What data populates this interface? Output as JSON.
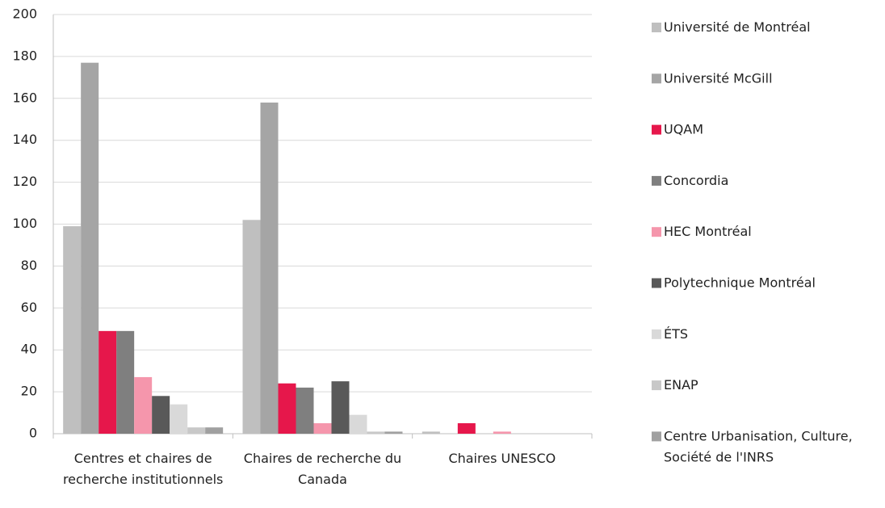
{
  "chart_data": {
    "type": "bar",
    "categories": [
      "Centres et chaires de recherche institutionnels",
      "Chaires de recherche du Canada",
      "Chaires UNESCO"
    ],
    "series": [
      {
        "name": "Université de Montréal",
        "color": "#bfbfbf",
        "values": [
          99,
          102,
          1
        ]
      },
      {
        "name": "Université McGill",
        "color": "#a5a5a5",
        "values": [
          177,
          158,
          0
        ]
      },
      {
        "name": "UQAM",
        "color": "#e6174b",
        "values": [
          49,
          24,
          5
        ]
      },
      {
        "name": "Concordia",
        "color": "#7f7f7f",
        "values": [
          49,
          22,
          0
        ]
      },
      {
        "name": "HEC Montréal",
        "color": "#f596ac",
        "values": [
          27,
          5,
          1
        ]
      },
      {
        "name": "Polytechnique Montréal",
        "color": "#595959",
        "values": [
          18,
          25,
          0
        ]
      },
      {
        "name": "ÉTS",
        "color": "#d9d9d9",
        "values": [
          14,
          9,
          0
        ]
      },
      {
        "name": "ENAP",
        "color": "#c8c8c8",
        "values": [
          3,
          1,
          0
        ]
      },
      {
        "name": "Centre Urbanisation, Culture, Société de l'INRS",
        "color": "#a0a0a0",
        "values": [
          3,
          1,
          0
        ]
      }
    ],
    "ylim": [
      0,
      200
    ],
    "yticks": [
      0,
      20,
      40,
      60,
      80,
      100,
      120,
      140,
      160,
      180,
      200
    ],
    "grid": true,
    "legend": "right"
  }
}
